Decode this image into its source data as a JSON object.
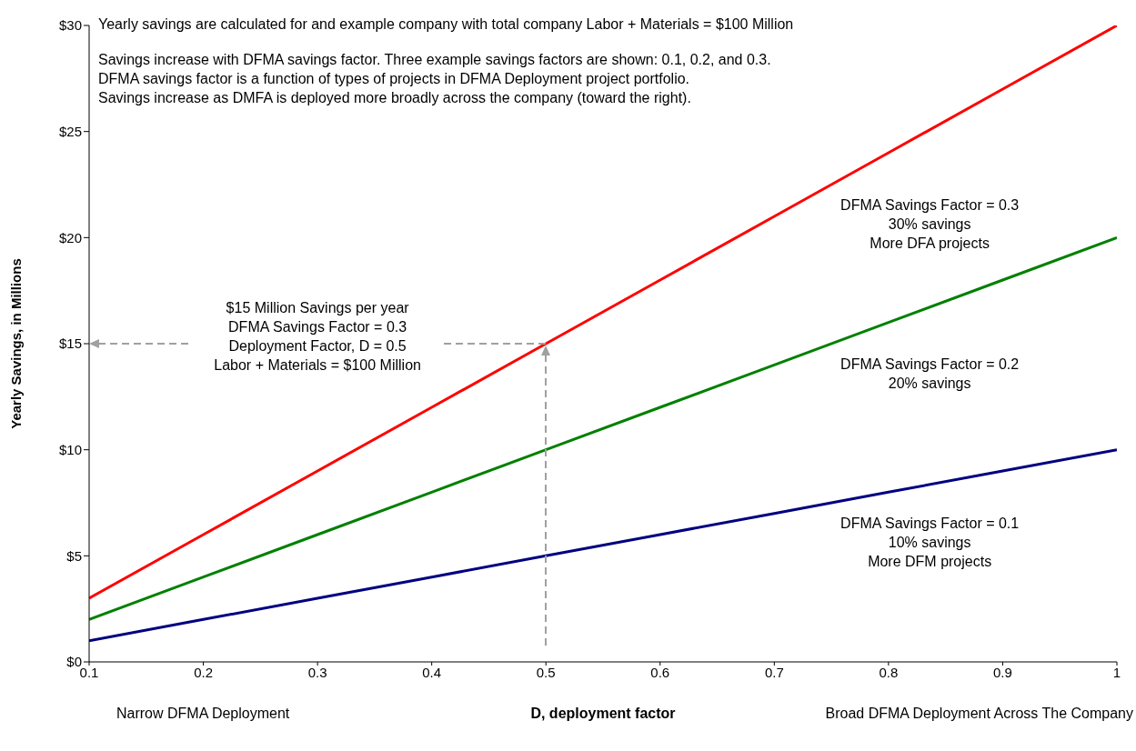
{
  "chart_data": {
    "type": "line",
    "xlabel": "D, deployment factor",
    "ylabel": "Yearly Savings, in Millions",
    "x": [
      0.1,
      0.2,
      0.3,
      0.4,
      0.5,
      0.6,
      0.7,
      0.8,
      0.9,
      1
    ],
    "series": [
      {
        "color": "#ff0000",
        "values": [
          3,
          6,
          9,
          12,
          15,
          18,
          21,
          24,
          27,
          30
        ]
      },
      {
        "color": "#008000",
        "values": [
          2,
          4,
          6,
          8,
          10,
          12,
          14,
          16,
          18,
          20
        ]
      },
      {
        "color": "#000080",
        "values": [
          1,
          2,
          3,
          4,
          5,
          6,
          7,
          8,
          9,
          10
        ]
      }
    ],
    "xlim": [
      0.1,
      1
    ],
    "xticks": [
      0.1,
      0.2,
      0.3,
      0.4,
      0.5,
      0.6,
      0.7,
      0.8,
      0.9,
      1
    ],
    "ylim": [
      0,
      30
    ],
    "yticks": [
      {
        "value": 0,
        "label": "$0"
      },
      {
        "value": 5,
        "label": "$5"
      },
      {
        "value": 10,
        "label": "$10"
      },
      {
        "value": 15,
        "label": "$15"
      },
      {
        "value": 20,
        "label": "$20"
      },
      {
        "value": 25,
        "label": "$25"
      },
      {
        "value": 30,
        "label": "$30"
      }
    ],
    "marker": "none",
    "line_style": "solid",
    "annotations": [
      "Yearly savings are calculated for and example company with total company Labor + Materials = $100 Million",
      "Savings increase with DFMA savings factor.  Three example savings factors are shown:  0.1, 0.2, and 0.3.",
      "DFMA savings factor is a function of types of projects in DFMA Deployment project portfolio.",
      "Savings increase as DMFA is deployed more broadly across the company (toward the right).",
      "Narrow DFMA Deployment",
      "Broad DFMA Deployment Across The Company",
      "$15 Million Savings per year\nDFMA Savings Factor = 0.3\nDeployment Factor, D = 0.5\nLabor + Materials = $100 Million",
      "DFMA Savings Factor = 0.3\n30% savings\nMore DFA projects",
      "DFMA Savings Factor = 0.2\n20% savings",
      "DFMA Savings Factor = 0.1\n10% savings\nMore DFM projects"
    ]
  }
}
